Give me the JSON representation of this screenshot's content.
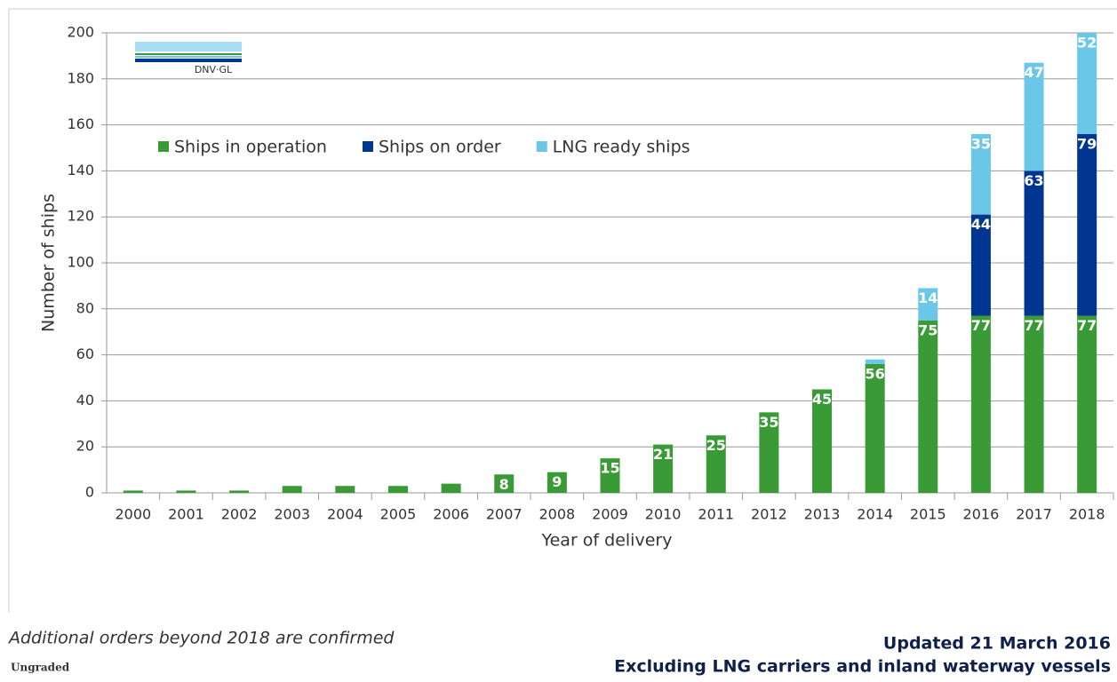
{
  "chart_data": {
    "type": "stacked_bar",
    "y_label": "Number of ships",
    "x_label": "Year of delivery",
    "categories": [
      "2000",
      "2001",
      "2002",
      "2003",
      "2004",
      "2005",
      "2006",
      "2007",
      "2008",
      "2009",
      "2010",
      "2011",
      "2012",
      "2013",
      "2014",
      "2015",
      "2016",
      "2017",
      "2018"
    ],
    "series": [
      {
        "name": "Ships in operation",
        "color": "#3a9a35",
        "values": [
          1,
          1,
          1,
          3,
          3,
          3,
          4,
          8,
          9,
          15,
          21,
          25,
          35,
          45,
          56,
          75,
          77,
          77,
          77
        ]
      },
      {
        "name": "Ships on order",
        "color": "#003591",
        "values": [
          0,
          0,
          0,
          0,
          0,
          0,
          0,
          0,
          0,
          0,
          0,
          0,
          0,
          0,
          0,
          0,
          44,
          63,
          79
        ]
      },
      {
        "name": "LNG ready ships",
        "color": "#6ac7e8",
        "values": [
          0,
          0,
          0,
          0,
          0,
          0,
          0,
          0,
          0,
          0,
          0,
          0,
          0,
          0,
          2,
          14,
          35,
          47,
          52
        ]
      }
    ],
    "ylim": [
      0,
      200
    ],
    "yticks": [
      0,
      20,
      40,
      60,
      80,
      100,
      120,
      140,
      160,
      180,
      200
    ],
    "grid": true
  },
  "logo": "DNV·GL",
  "footnote": "Additional orders beyond 2018 are confirmed",
  "classification": "Ungraded",
  "updated": "Updated 21 March 2016",
  "scope": "Excluding LNG carriers and inland waterway vessels"
}
